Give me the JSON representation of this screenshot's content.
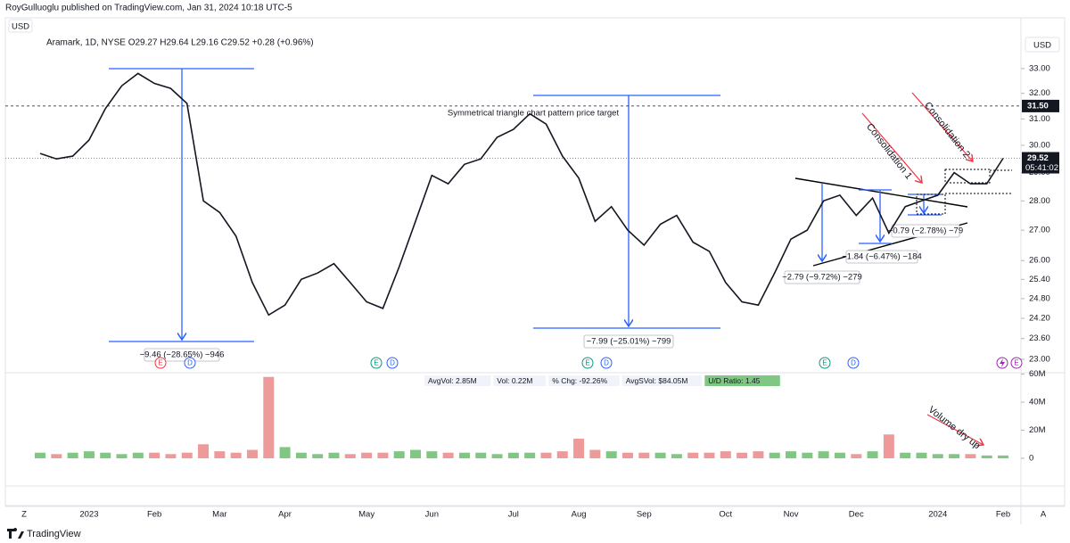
{
  "header": {
    "publisher": "RoyGulluoglu published on TradingView.com, Jan 31, 2024 10:18 UTC-5",
    "currency_left": "USD",
    "brand": "TradingView",
    "left_button": "Z",
    "right_button": "A"
  },
  "chart_data": [
    {
      "type": "line",
      "legend": "Aramark, 1D, NYSE O29.27 H29.64 L29.16 C29.52 +0.28 (+0.96%)",
      "currency": "USD",
      "color": "#131722",
      "log_scale": true,
      "categories": [
        null,
        null,
        null,
        "2023",
        null,
        null,
        null,
        "Feb",
        null,
        null,
        null,
        "Mar",
        null,
        null,
        null,
        "Apr",
        null,
        null,
        null,
        null,
        "May",
        null,
        null,
        null,
        "Jun",
        null,
        null,
        null,
        null,
        "Jul",
        null,
        null,
        null,
        "Aug",
        null,
        null,
        null,
        "Sep",
        null,
        null,
        null,
        null,
        "Oct",
        null,
        null,
        null,
        "Nov",
        null,
        null,
        null,
        "Dec",
        null,
        null,
        null,
        null,
        "2024",
        null,
        null,
        null,
        "Feb"
      ],
      "values": [
        29.7,
        29.5,
        29.6,
        30.2,
        31.4,
        32.3,
        32.8,
        32.4,
        32.2,
        31.6,
        28.0,
        27.6,
        26.8,
        25.3,
        24.3,
        24.6,
        25.4,
        25.6,
        25.9,
        25.3,
        24.7,
        24.5,
        25.8,
        27.3,
        28.9,
        28.6,
        29.3,
        29.5,
        30.3,
        30.6,
        31.2,
        30.8,
        29.6,
        28.8,
        27.3,
        27.8,
        27.0,
        26.5,
        27.2,
        27.5,
        26.6,
        26.3,
        25.3,
        24.7,
        24.6,
        25.6,
        26.7,
        27.0,
        28.0,
        28.2,
        27.5,
        28.1,
        26.9,
        27.8,
        28.0,
        28.2,
        29.0,
        28.6,
        28.6,
        29.52
      ],
      "ylim": [
        22.62,
        34.3
      ],
      "yticks": [
        {
          "value": 33,
          "label": "33.00"
        },
        {
          "value": 32,
          "label": "32.00"
        },
        {
          "value": 31,
          "label": "31.00"
        },
        {
          "value": 30,
          "label": "30.00"
        },
        {
          "value": 29,
          "label": "29.00"
        },
        {
          "value": 28,
          "label": "28.00"
        },
        {
          "value": 27,
          "label": "27.00"
        },
        {
          "value": 26,
          "label": "26.00"
        },
        {
          "value": 25.4,
          "label": "25.40"
        },
        {
          "value": 24.8,
          "label": "24.80"
        },
        {
          "value": 24.2,
          "label": "24.20"
        },
        {
          "value": 23.6,
          "label": "23.60"
        },
        {
          "value": 23,
          "label": "23.00"
        }
      ],
      "price_line": {
        "value": 31.5,
        "label": "31.50"
      },
      "last_price": {
        "value": 29.52,
        "label": "29.52"
      },
      "countdown": "05:41:02",
      "annotations": [
        "Symmetrical triangle chart pattern price target",
        "−9.46 (−28.65%) −946",
        "−7.99 (−25.01%) −799",
        "−2.79 (−9.72%) −279",
        "−1.84 (−6.47%) −184",
        "−0.79 (−2.78%) −79",
        "Consolidation 1",
        "Consolidation 2"
      ],
      "event_markers": [
        "E",
        "D",
        "E",
        "D",
        "E",
        "D",
        "E",
        "D",
        "E"
      ]
    },
    {
      "type": "bar",
      "up_color": "#81c784",
      "down_color": "#ef9a9a",
      "values": [
        4,
        3,
        4,
        5,
        4,
        3,
        4,
        4,
        3,
        4,
        10,
        5,
        4,
        6,
        58,
        8,
        4,
        3,
        4,
        3,
        4,
        4,
        5,
        6,
        5,
        4,
        4,
        4,
        3,
        4,
        4,
        4,
        5,
        14,
        6,
        5,
        4,
        4,
        4,
        3,
        4,
        4,
        5,
        4,
        5,
        4,
        5,
        4,
        5,
        4,
        3,
        5,
        17,
        4,
        4,
        3,
        3,
        3,
        2,
        2
      ],
      "ylim": [
        0,
        61
      ],
      "yticks": [
        {
          "value": 60,
          "label": "60M"
        },
        {
          "value": 40,
          "label": "40M"
        },
        {
          "value": 20,
          "label": "20M"
        },
        0
      ],
      "stats": [
        "AvgVol: 2.85M",
        "Vol: 0.22M",
        "% Chg: -92.26%",
        "AvgSVol: $84.05M",
        "U/D Ratio: 1.45"
      ],
      "annotation": "Volume dry up"
    }
  ]
}
